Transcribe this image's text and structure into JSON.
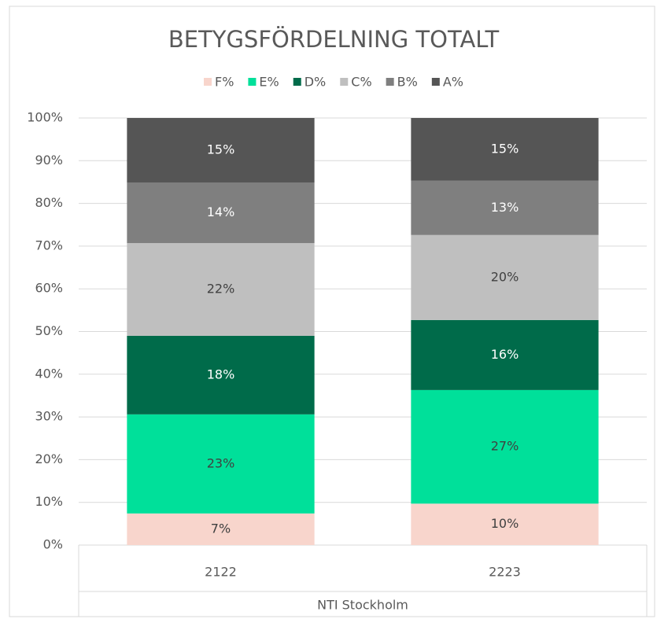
{
  "chart_data": {
    "type": "stacked_bar",
    "title": "BETYGSFÖRDELNING TOTALT",
    "categories": [
      "2122",
      "2223"
    ],
    "x_label": "NTI Stockholm",
    "series": [
      {
        "name": "F%",
        "color": "#f8d5cc",
        "values": [
          7.4,
          9.7
        ],
        "value_labels": [
          "7%",
          "10%"
        ]
      },
      {
        "name": "E%",
        "color": "#00e09a",
        "values": [
          23.2,
          26.6
        ],
        "value_labels": [
          "23%",
          "27%"
        ]
      },
      {
        "name": "D%",
        "color": "#006b4a",
        "values": [
          18.4,
          16.4
        ],
        "value_labels": [
          "18%",
          "16%"
        ]
      },
      {
        "name": "C%",
        "color": "#bfbfbf",
        "values": [
          21.7,
          19.9
        ],
        "value_labels": [
          "22%",
          "20%"
        ]
      },
      {
        "name": "B%",
        "color": "#7f7f7f",
        "values": [
          14.2,
          12.7
        ],
        "value_labels": [
          "14%",
          "13%"
        ]
      },
      {
        "name": "A%",
        "color": "#555555",
        "values": [
          15.1,
          14.7
        ],
        "value_labels": [
          "15%",
          "15%"
        ]
      }
    ],
    "ylim": [
      0,
      100
    ],
    "yticks": [
      {
        "value": 0,
        "label": "0%"
      },
      {
        "value": 10,
        "label": "10%"
      },
      {
        "value": 20,
        "label": "20%"
      },
      {
        "value": 30,
        "label": "30%"
      },
      {
        "value": 40,
        "label": "40%"
      },
      {
        "value": 50,
        "label": "50%"
      },
      {
        "value": 60,
        "label": "60%"
      },
      {
        "value": 70,
        "label": "70%"
      },
      {
        "value": 80,
        "label": "80%"
      },
      {
        "value": 90,
        "label": "90%"
      },
      {
        "value": 100,
        "label": "100%"
      }
    ],
    "grid": true,
    "legend": "top"
  }
}
